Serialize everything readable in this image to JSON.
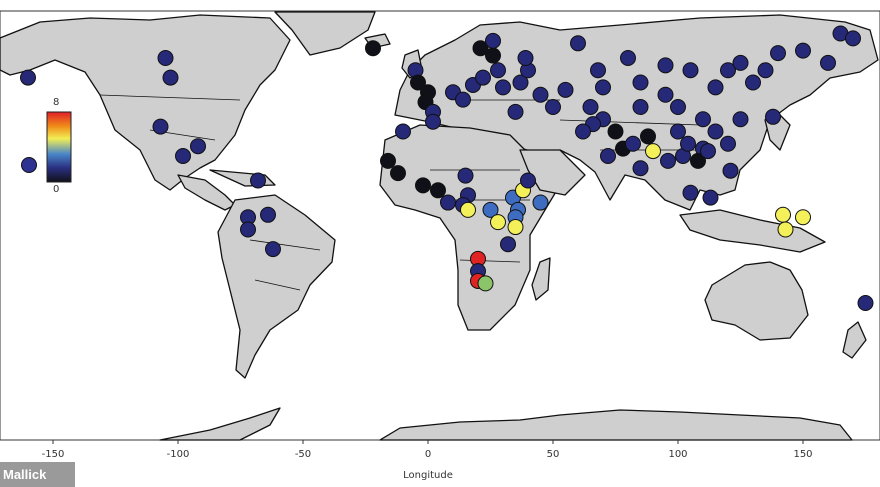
{
  "map": {
    "xlabel": "Longitude",
    "x_ticks": [
      "-150",
      "-100",
      "-50",
      "0",
      "50",
      "100",
      "150"
    ],
    "colorbar": {
      "top_label": "8",
      "bottom_label": "0",
      "gradient": [
        "#e0202a",
        "#f08a18",
        "#f2ee55",
        "#4a86c8",
        "#2a2f80",
        "#111118"
      ]
    },
    "colors": {
      "land": "#cfcfcf",
      "ocean": "#ffffff",
      "border": "#111111",
      "marker_dark_blue": "#262878",
      "marker_black": "#101018",
      "marker_mid_blue": "#3d6cc0",
      "marker_yellow": "#f3f05a",
      "marker_red": "#e02424",
      "marker_green": "#8cc46a"
    },
    "markers": [
      {
        "lon": -160,
        "lat": 52,
        "v": 1.5
      },
      {
        "lon": -105,
        "lat": 60,
        "v": 1.5
      },
      {
        "lon": -103,
        "lat": 52,
        "v": 1.5
      },
      {
        "lon": -107,
        "lat": 32,
        "v": 1.5
      },
      {
        "lon": -98,
        "lat": 20,
        "v": 1.5
      },
      {
        "lon": -92,
        "lat": 24,
        "v": 1.5
      },
      {
        "lon": -68,
        "lat": 10,
        "v": 1.5
      },
      {
        "lon": -72,
        "lat": -5,
        "v": 1.5
      },
      {
        "lon": -64,
        "lat": -4,
        "v": 1.5
      },
      {
        "lon": -72,
        "lat": -10,
        "v": 1.5
      },
      {
        "lon": -62,
        "lat": -18,
        "v": 1.5
      },
      {
        "lon": -22,
        "lat": 64,
        "v": 0.5
      },
      {
        "lon": -5,
        "lat": 55,
        "v": 1.5
      },
      {
        "lon": -4,
        "lat": 50,
        "v": 0.5
      },
      {
        "lon": 0,
        "lat": 46,
        "v": 0.5
      },
      {
        "lon": -1,
        "lat": 42,
        "v": 0.5
      },
      {
        "lon": 2,
        "lat": 38,
        "v": 1.5
      },
      {
        "lon": 10,
        "lat": 46,
        "v": 1.5
      },
      {
        "lon": 14,
        "lat": 43,
        "v": 1.5
      },
      {
        "lon": 18,
        "lat": 49,
        "v": 1.5
      },
      {
        "lon": 22,
        "lat": 52,
        "v": 1.5
      },
      {
        "lon": 28,
        "lat": 55,
        "v": 1.5
      },
      {
        "lon": 30,
        "lat": 48,
        "v": 1.5
      },
      {
        "lon": 37,
        "lat": 50,
        "v": 1.5
      },
      {
        "lon": 40,
        "lat": 55,
        "v": 1.5
      },
      {
        "lon": 26,
        "lat": 61,
        "v": 0.5
      },
      {
        "lon": 21,
        "lat": 64,
        "v": 0.5
      },
      {
        "lon": 39,
        "lat": 60,
        "v": 1.5
      },
      {
        "lon": 26,
        "lat": 67,
        "v": 1.5
      },
      {
        "lon": 60,
        "lat": 66,
        "v": 1.5
      },
      {
        "lon": 45,
        "lat": 45,
        "v": 1.5
      },
      {
        "lon": 50,
        "lat": 40,
        "v": 1.5
      },
      {
        "lon": 35,
        "lat": 38,
        "v": 1.5
      },
      {
        "lon": 2,
        "lat": 34,
        "v": 1.5
      },
      {
        "lon": -10,
        "lat": 30,
        "v": 1.5
      },
      {
        "lon": -16,
        "lat": 18,
        "v": 0.5
      },
      {
        "lon": -12,
        "lat": 13,
        "v": 0.5
      },
      {
        "lon": -2,
        "lat": 8,
        "v": 0.5
      },
      {
        "lon": 4,
        "lat": 6,
        "v": 0.5
      },
      {
        "lon": 15,
        "lat": 12,
        "v": 1.5
      },
      {
        "lon": 16,
        "lat": 4,
        "v": 1.5
      },
      {
        "lon": 14,
        "lat": 0,
        "v": 1.5
      },
      {
        "lon": 8,
        "lat": 1,
        "v": 1.5
      },
      {
        "lon": 16,
        "lat": -2,
        "v": 5
      },
      {
        "lon": 25,
        "lat": -2,
        "v": 3
      },
      {
        "lon": 28,
        "lat": -7,
        "v": 5
      },
      {
        "lon": 34,
        "lat": 3,
        "v": 2.5
      },
      {
        "lon": 38,
        "lat": 6,
        "v": 5
      },
      {
        "lon": 45,
        "lat": 1,
        "v": 2.5
      },
      {
        "lon": 36,
        "lat": -2,
        "v": 2.5
      },
      {
        "lon": 35,
        "lat": -5,
        "v": 2.5
      },
      {
        "lon": 35,
        "lat": -9,
        "v": 5
      },
      {
        "lon": 40,
        "lat": 10,
        "v": 1.5
      },
      {
        "lon": 32,
        "lat": -16,
        "v": 1.5
      },
      {
        "lon": 20,
        "lat": -22,
        "v": 7.5
      },
      {
        "lon": 20,
        "lat": -27,
        "v": 1.5
      },
      {
        "lon": 20,
        "lat": -31,
        "v": 7.5
      },
      {
        "lon": 23,
        "lat": -32,
        "v": 4
      },
      {
        "lon": 72,
        "lat": 20,
        "v": 1.5
      },
      {
        "lon": 78,
        "lat": 23,
        "v": 0.5
      },
      {
        "lon": 75,
        "lat": 30,
        "v": 0.5
      },
      {
        "lon": 82,
        "lat": 25,
        "v": 1.5
      },
      {
        "lon": 88,
        "lat": 28,
        "v": 0.5
      },
      {
        "lon": 85,
        "lat": 15,
        "v": 1.5
      },
      {
        "lon": 90,
        "lat": 22,
        "v": 5
      },
      {
        "lon": 96,
        "lat": 18,
        "v": 1.5
      },
      {
        "lon": 102,
        "lat": 20,
        "v": 1.5
      },
      {
        "lon": 100,
        "lat": 30,
        "v": 1.5
      },
      {
        "lon": 104,
        "lat": 25,
        "v": 1.5
      },
      {
        "lon": 110,
        "lat": 23,
        "v": 1.5
      },
      {
        "lon": 100,
        "lat": 40,
        "v": 1.5
      },
      {
        "lon": 110,
        "lat": 35,
        "v": 1.5
      },
      {
        "lon": 115,
        "lat": 30,
        "v": 1.5
      },
      {
        "lon": 120,
        "lat": 25,
        "v": 1.5
      },
      {
        "lon": 125,
        "lat": 35,
        "v": 1.5
      },
      {
        "lon": 115,
        "lat": 48,
        "v": 1.5
      },
      {
        "lon": 130,
        "lat": 50,
        "v": 1.5
      },
      {
        "lon": 135,
        "lat": 55,
        "v": 1.5
      },
      {
        "lon": 138,
        "lat": 36,
        "v": 1.5
      },
      {
        "lon": 121,
        "lat": 14,
        "v": 1.5
      },
      {
        "lon": 113,
        "lat": 3,
        "v": 1.5
      },
      {
        "lon": 105,
        "lat": 5,
        "v": 1.5
      },
      {
        "lon": 120,
        "lat": 55,
        "v": 1.5
      },
      {
        "lon": 125,
        "lat": 58,
        "v": 1.5
      },
      {
        "lon": 140,
        "lat": 62,
        "v": 1.5
      },
      {
        "lon": 150,
        "lat": 63,
        "v": 1.5
      },
      {
        "lon": 160,
        "lat": 58,
        "v": 1.5
      },
      {
        "lon": 165,
        "lat": 70,
        "v": 1.5
      },
      {
        "lon": 170,
        "lat": 68,
        "v": 1.5
      },
      {
        "lon": 55,
        "lat": 47,
        "v": 1.5
      },
      {
        "lon": 65,
        "lat": 40,
        "v": 1.5
      },
      {
        "lon": 70,
        "lat": 48,
        "v": 1.5
      },
      {
        "lon": 85,
        "lat": 50,
        "v": 1.5
      },
      {
        "lon": 80,
        "lat": 60,
        "v": 1.5
      },
      {
        "lon": 95,
        "lat": 57,
        "v": 1.5
      },
      {
        "lon": 105,
        "lat": 55,
        "v": 1.5
      },
      {
        "lon": 68,
        "lat": 55,
        "v": 1.5
      },
      {
        "lon": 70,
        "lat": 35,
        "v": 1.5
      },
      {
        "lon": 66,
        "lat": 33,
        "v": 1.5
      },
      {
        "lon": 62,
        "lat": 30,
        "v": 1.5
      },
      {
        "lon": 85,
        "lat": 40,
        "v": 1.5
      },
      {
        "lon": 95,
        "lat": 45,
        "v": 1.5
      },
      {
        "lon": 108,
        "lat": 18,
        "v": 0.5
      },
      {
        "lon": 112,
        "lat": 22,
        "v": 1.5
      },
      {
        "lon": 142,
        "lat": -4,
        "v": 5
      },
      {
        "lon": 150,
        "lat": -5,
        "v": 5
      },
      {
        "lon": 143,
        "lat": -10,
        "v": 5
      },
      {
        "lon": 175,
        "lat": -40,
        "v": 1.5
      }
    ]
  }
}
